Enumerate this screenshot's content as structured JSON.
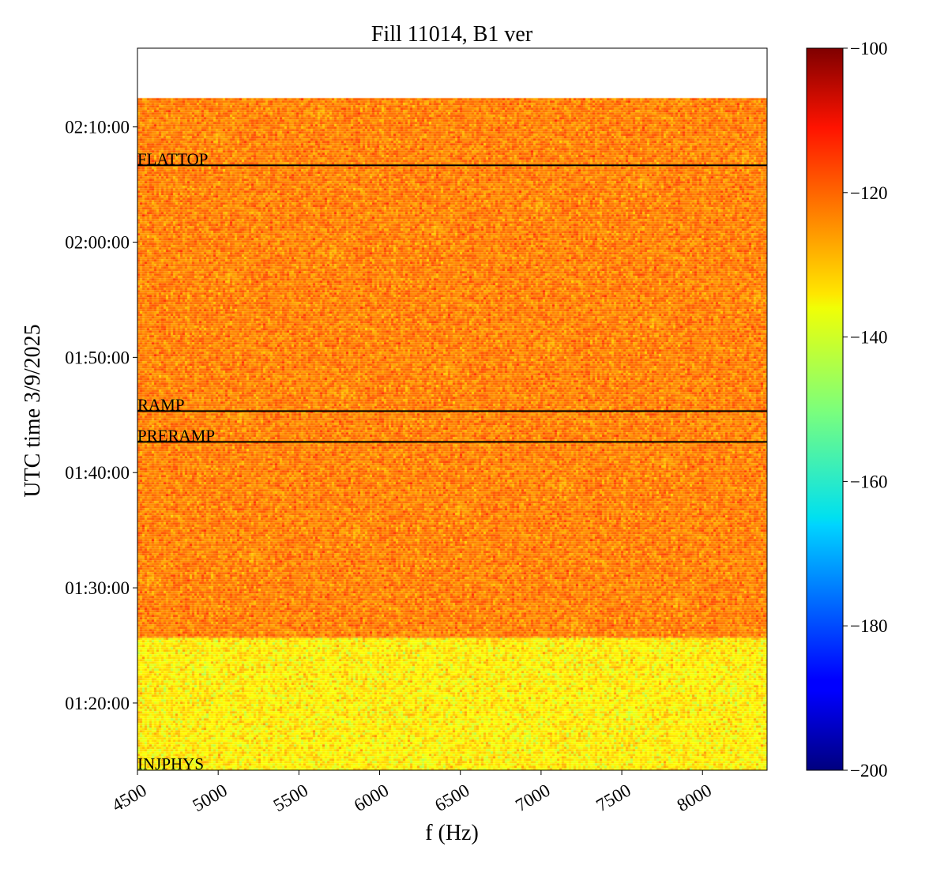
{
  "chart_data": {
    "type": "heatmap",
    "title": "Fill 11014, B1 ver",
    "xlabel": "f (Hz)",
    "ylabel": "UTC time 3/9/2025",
    "xlim": [
      4500,
      8400
    ],
    "ylim": [
      "01:14:10",
      "02:16:50"
    ],
    "data_ylim": [
      "01:14:10",
      "02:12:30"
    ],
    "x_ticks": [
      {
        "value": 4500,
        "label": "4500"
      },
      {
        "value": 5000,
        "label": "5000"
      },
      {
        "value": 5500,
        "label": "5500"
      },
      {
        "value": 6000,
        "label": "6000"
      },
      {
        "value": 6500,
        "label": "6500"
      },
      {
        "value": 7000,
        "label": "7000"
      },
      {
        "value": 7500,
        "label": "7500"
      },
      {
        "value": 8000,
        "label": "8000"
      }
    ],
    "y_ticks": [
      {
        "value": "01:20:00",
        "label": "01:20:00"
      },
      {
        "value": "01:30:00",
        "label": "01:30:00"
      },
      {
        "value": "01:40:00",
        "label": "01:40:00"
      },
      {
        "value": "01:50:00",
        "label": "01:50:00"
      },
      {
        "value": "02:00:00",
        "label": "02:00:00"
      },
      {
        "value": "02:10:00",
        "label": "02:10:00"
      }
    ],
    "phase_markers": [
      {
        "label": "INJPHYS",
        "time": "01:14:10",
        "line": false
      },
      {
        "label": "PRERAMP",
        "time": "01:42:40",
        "line": true
      },
      {
        "label": "RAMP",
        "time": "01:45:20",
        "line": true
      },
      {
        "label": "FLATTOP",
        "time": "02:06:40",
        "line": true
      }
    ],
    "regions": [
      {
        "from": "01:14:10",
        "to": "01:25:40",
        "level_db": -136,
        "spread_db": 3.5
      },
      {
        "from": "01:25:40",
        "to": "02:12:30",
        "level_db": -125,
        "spread_db": 3
      }
    ],
    "colorbar": {
      "colormap": "jet",
      "min": -200,
      "max": -100,
      "ticks": [
        {
          "value": -100,
          "label": "−100"
        },
        {
          "value": -120,
          "label": "−120"
        },
        {
          "value": -140,
          "label": "−140"
        },
        {
          "value": -160,
          "label": "−160"
        },
        {
          "value": -180,
          "label": "−180"
        },
        {
          "value": -200,
          "label": "−200"
        }
      ]
    },
    "grid": false
  }
}
